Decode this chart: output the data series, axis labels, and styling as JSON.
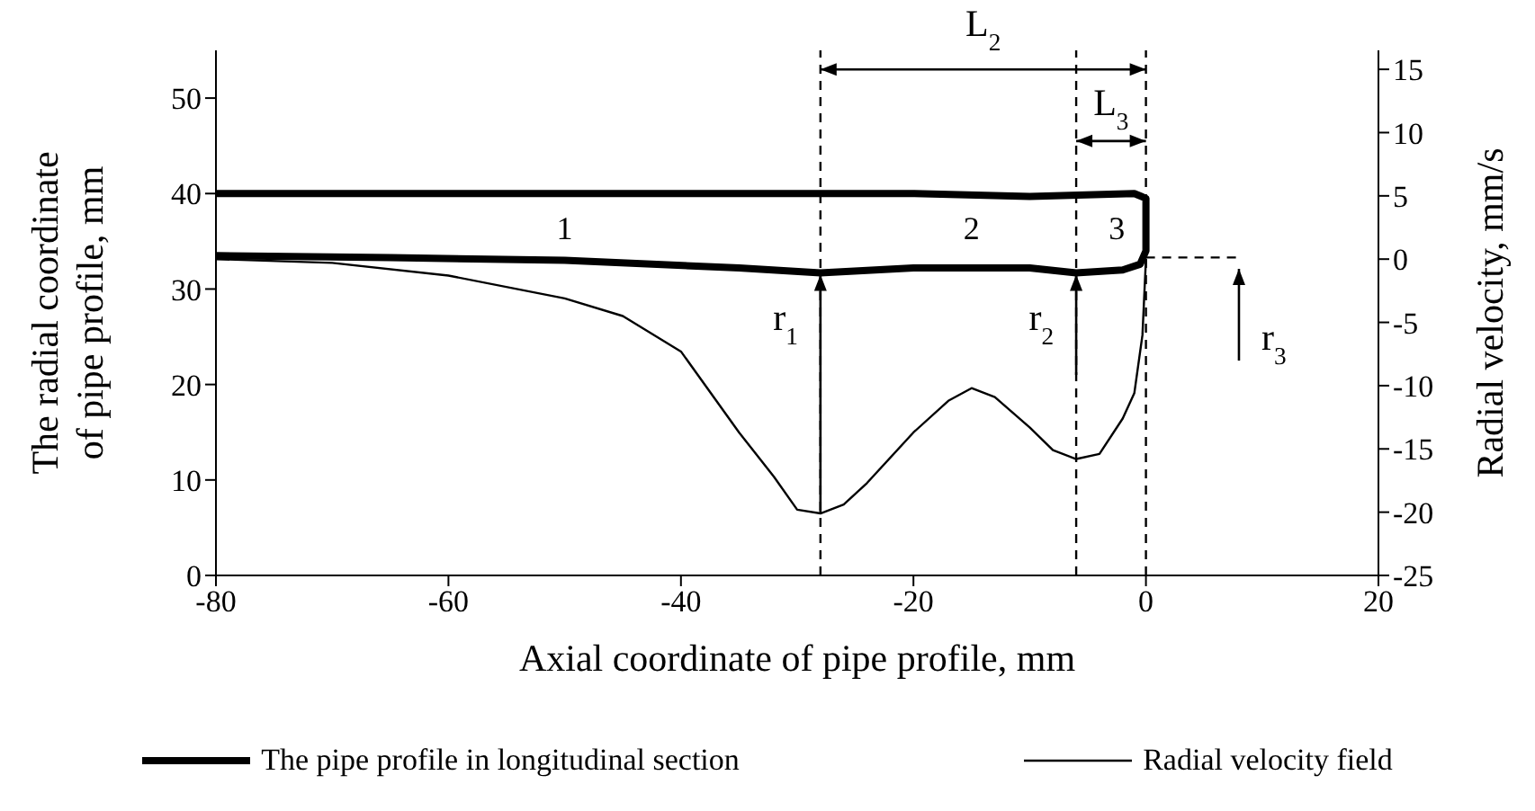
{
  "chart_data": {
    "type": "line",
    "xlabel": "Axial coordinate of pipe profile, mm",
    "ylabel": "The radial coordinate\nof pipe profile, mm",
    "y2label": "Radial velocity, mm/s",
    "xlim": [
      -80,
      20
    ],
    "xticks": [
      -80,
      -60,
      -40,
      -20,
      0,
      20
    ],
    "ylim": [
      0,
      55
    ],
    "yticks": [
      0,
      10,
      20,
      30,
      40,
      50
    ],
    "y2lim": [
      -25,
      16.5
    ],
    "y2ticks": [
      -25,
      -20,
      -15,
      -10,
      -5,
      0,
      5,
      10,
      15
    ],
    "legend": "bottom",
    "marker": "none",
    "series": [
      {
        "name": "The pipe profile in longitudinal section",
        "color": "#000000",
        "x": [
          -80,
          -20,
          -10,
          -1,
          0,
          0,
          -0.5,
          -2,
          -6,
          -10,
          -20,
          -28,
          -35,
          -50,
          -65,
          -80
        ],
        "values": [
          40,
          40,
          39.7,
          40,
          39.5,
          34,
          32.6,
          32,
          31.7,
          32.2,
          32.2,
          31.7,
          32.2,
          33,
          33.3,
          33.5
        ]
      },
      {
        "name": "Radial velocity field",
        "color": "#000000",
        "axis": "y2",
        "x": [
          -80,
          -70,
          -60,
          -50,
          -45,
          -40,
          -35,
          -32,
          -30,
          -28,
          -26,
          -24,
          -20,
          -17,
          -15,
          -13,
          -10,
          -8,
          -6,
          -4,
          -2,
          -1,
          -0.3,
          0
        ],
        "values": [
          0,
          -0.3,
          -1.3,
          -3.1,
          -4.5,
          -7.3,
          -13.7,
          -17.2,
          -19.8,
          -20.1,
          -19.4,
          -17.7,
          -13.7,
          -11.2,
          -10.2,
          -10.9,
          -13.3,
          -15.1,
          -15.8,
          -15.4,
          -12.6,
          -10.6,
          -6,
          0
        ]
      }
    ],
    "ref_lines": [
      {
        "axis": "x",
        "value": -28,
        "color": "#000000",
        "line_style": "dashed"
      },
      {
        "axis": "x",
        "value": -6,
        "color": "#000000",
        "line_style": "dashed"
      },
      {
        "axis": "x",
        "value": 0,
        "color": "#000000",
        "line_style": "dashed"
      }
    ],
    "annotations": [
      "1",
      "2",
      "3",
      {
        "text": "r$_{1}$",
        "x": -28,
        "y": 31.7
      },
      {
        "text": "r$_{2}$",
        "x": -6,
        "y": 31.7
      },
      "r$_{3}$",
      "L$_{2}$",
      {
        "text": "L$_{3}$",
        "x": 0,
        "y": 45.5
      }
    ]
  }
}
